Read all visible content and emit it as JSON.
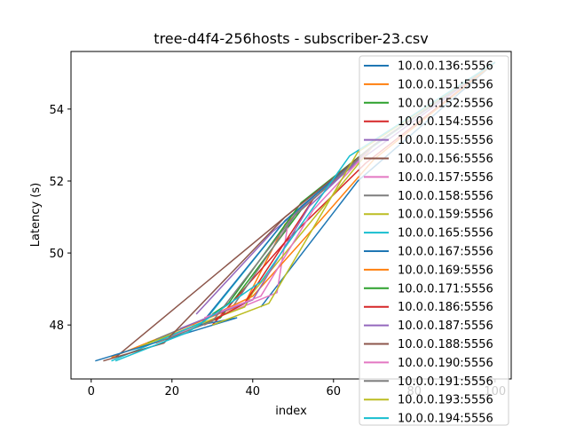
{
  "chart_data": {
    "type": "line",
    "title": "tree-d4f4-256hosts - subscriber-23.csv",
    "xlabel": "index",
    "ylabel": "Latency (s)",
    "xlim": [
      -5,
      104
    ],
    "ylim": [
      46.5,
      55.6
    ],
    "xticks": [
      0,
      20,
      40,
      60,
      80,
      100
    ],
    "yticks": [
      48,
      50,
      52,
      54
    ],
    "legend_position": "upper-right",
    "series": [
      {
        "name": "10.0.0.136:5556",
        "color": "#1f77b4",
        "x": [
          42,
          66,
          100
        ],
        "y": [
          48.5,
          52.0,
          55.3
        ]
      },
      {
        "name": "10.0.0.151:5556",
        "color": "#ff7f0e",
        "x": [
          5,
          38,
          48,
          69,
          100
        ],
        "y": [
          47.1,
          48.6,
          50.8,
          52.9,
          55.3
        ]
      },
      {
        "name": "10.0.0.152:5556",
        "color": "#2ca02c",
        "x": [
          14,
          32,
          52,
          70,
          100
        ],
        "y": [
          47.5,
          48.2,
          51.2,
          53.0,
          55.3
        ]
      },
      {
        "name": "10.0.0.154:5556",
        "color": "#d62728",
        "x": [
          30,
          48,
          68,
          100
        ],
        "y": [
          48.0,
          50.3,
          52.5,
          55.3
        ]
      },
      {
        "name": "10.0.0.155:5556",
        "color": "#9467bd",
        "x": [
          26,
          45,
          68,
          100
        ],
        "y": [
          48.3,
          50.6,
          52.7,
          55.3
        ]
      },
      {
        "name": "10.0.0.156:5556",
        "color": "#8c564b",
        "x": [
          6,
          48,
          70,
          100
        ],
        "y": [
          47.1,
          51.0,
          53.0,
          55.3
        ]
      },
      {
        "name": "10.0.0.157:5556",
        "color": "#e377c2",
        "x": [
          20,
          46,
          49,
          70,
          100
        ],
        "y": [
          47.7,
          48.9,
          51.0,
          53.0,
          55.3
        ]
      },
      {
        "name": "10.0.0.158:5556",
        "color": "#7f7f7f",
        "x": [
          16,
          35,
          52,
          70,
          100
        ],
        "y": [
          47.6,
          48.5,
          51.3,
          53.0,
          55.3
        ]
      },
      {
        "name": "10.0.0.159:5556",
        "color": "#bcbd22",
        "x": [
          12,
          38,
          40,
          70,
          100
        ],
        "y": [
          47.4,
          48.5,
          48.9,
          53.0,
          55.3
        ]
      },
      {
        "name": "10.0.0.165:5556",
        "color": "#17becf",
        "x": [
          5,
          28,
          48,
          69,
          100
        ],
        "y": [
          47.0,
          48.1,
          50.9,
          52.9,
          55.3
        ]
      },
      {
        "name": "10.0.0.167:5556",
        "color": "#1f77b4",
        "x": [
          1,
          36,
          27,
          48,
          70,
          100
        ],
        "y": [
          47.0,
          48.2,
          48.0,
          50.9,
          53.0,
          55.3
        ]
      },
      {
        "name": "10.0.0.169:5556",
        "color": "#ff7f0e",
        "x": [
          25,
          40,
          52,
          70,
          100
        ],
        "y": [
          48.0,
          48.8,
          50.3,
          52.6,
          55.3
        ]
      },
      {
        "name": "10.0.0.171:5556",
        "color": "#2ca02c",
        "x": [
          30,
          34,
          52,
          70,
          100
        ],
        "y": [
          48.3,
          48.6,
          51.4,
          53.0,
          55.3
        ]
      },
      {
        "name": "10.0.0.186:5556",
        "color": "#d62728",
        "x": [
          28,
          38,
          55,
          70,
          100
        ],
        "y": [
          48.0,
          48.6,
          51.5,
          53.0,
          55.3
        ]
      },
      {
        "name": "10.0.0.187:5556",
        "color": "#9467bd",
        "x": [
          22,
          40,
          54,
          70,
          100
        ],
        "y": [
          47.9,
          48.7,
          51.3,
          53.0,
          55.3
        ]
      },
      {
        "name": "10.0.0.188:5556",
        "color": "#8c564b",
        "x": [
          3,
          18,
          48,
          70,
          100
        ],
        "y": [
          47.0,
          47.5,
          51.0,
          53.0,
          55.3
        ]
      },
      {
        "name": "10.0.0.190:5556",
        "color": "#e377c2",
        "x": [
          28,
          42,
          55,
          70,
          100
        ],
        "y": [
          48.2,
          48.8,
          51.2,
          53.0,
          55.3
        ]
      },
      {
        "name": "10.0.0.191:5556",
        "color": "#7f7f7f",
        "x": [
          16,
          30,
          50,
          70,
          100
        ],
        "y": [
          47.5,
          48.1,
          51.0,
          53.0,
          55.3
        ]
      },
      {
        "name": "10.0.0.193:5556",
        "color": "#bcbd22",
        "x": [
          30,
          44,
          66,
          100
        ],
        "y": [
          48.0,
          48.6,
          52.8,
          55.3
        ]
      },
      {
        "name": "10.0.0.194:5556",
        "color": "#17becf",
        "x": [
          6,
          24,
          42,
          64,
          100
        ],
        "y": [
          47.0,
          47.8,
          49.2,
          52.7,
          55.3
        ]
      }
    ]
  }
}
